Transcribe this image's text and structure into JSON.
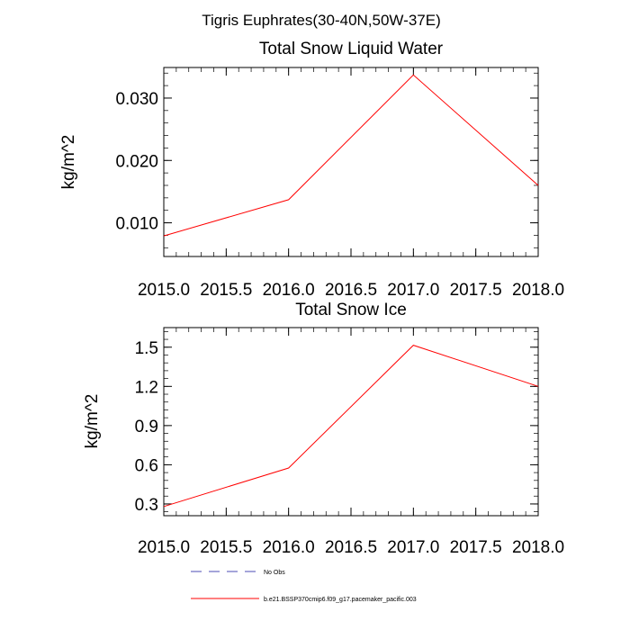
{
  "suptitle": "Tigris Euphrates(30-40N,50W-37E)",
  "colors": {
    "model_line": "#ff0000",
    "obs_line": "#4b4bb4",
    "axis": "#000000"
  },
  "legend": {
    "items": [
      {
        "label": "No Obs",
        "style": "dashed",
        "color": "#4b4bb4"
      },
      {
        "label": "b.e21.BSSP370cmip6.f09_g17.pacemaker_pacific.003",
        "style": "solid",
        "color": "#ff0000"
      }
    ]
  },
  "chart_data": [
    {
      "type": "line",
      "title": "Total Snow Liquid Water",
      "xlabel": "",
      "ylabel": "kg/m^2",
      "xlim": [
        2015.0,
        2018.0
      ],
      "ylim": [
        0.0046,
        0.0349
      ],
      "x_ticks": [
        2015.0,
        2015.5,
        2016.0,
        2016.5,
        2017.0,
        2017.5,
        2018.0
      ],
      "x_tick_labels": [
        "2015.0",
        "2015.5",
        "2016.0",
        "2016.5",
        "2017.0",
        "2017.5",
        "2018.0"
      ],
      "y_ticks": [
        0.01,
        0.02,
        0.03
      ],
      "y_tick_labels": [
        "0.010",
        "0.020",
        "0.030"
      ],
      "series": [
        {
          "name": "b.e21.BSSP370cmip6.f09_g17.pacemaker_pacific.003",
          "x": [
            2015,
            2016,
            2017,
            2018
          ],
          "values": [
            0.0079,
            0.0137,
            0.0337,
            0.016
          ]
        }
      ]
    },
    {
      "type": "line",
      "title": "Total Snow Ice",
      "xlabel": "",
      "ylabel": "kg/m^2",
      "xlim": [
        2015.0,
        2018.0
      ],
      "ylim": [
        0.21,
        1.65
      ],
      "x_ticks": [
        2015.0,
        2015.5,
        2016.0,
        2016.5,
        2017.0,
        2017.5,
        2018.0
      ],
      "x_tick_labels": [
        "2015.0",
        "2015.5",
        "2016.0",
        "2016.5",
        "2017.0",
        "2017.5",
        "2018.0"
      ],
      "y_ticks": [
        0.3,
        0.6,
        0.9,
        1.2,
        1.5
      ],
      "y_tick_labels": [
        "0.3",
        "0.6",
        "0.9",
        "1.2",
        "1.5"
      ],
      "series": [
        {
          "name": "b.e21.BSSP370cmip6.f09_g17.pacemaker_pacific.003",
          "x": [
            2015,
            2016,
            2017,
            2018
          ],
          "values": [
            0.28,
            0.575,
            1.515,
            1.2
          ]
        }
      ]
    }
  ]
}
